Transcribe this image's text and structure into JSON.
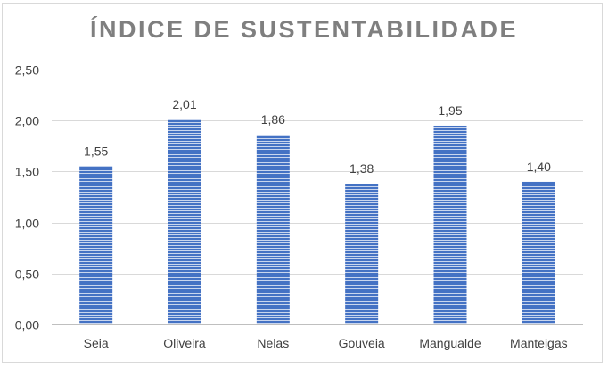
{
  "chart_data": {
    "type": "bar",
    "title": "ÍNDICE DE SUSTENTABILIDADE",
    "categories": [
      "Seia",
      "Oliveira",
      "Nelas",
      "Gouveia",
      "Mangualde",
      "Manteigas"
    ],
    "values": [
      1.55,
      2.01,
      1.86,
      1.38,
      1.95,
      1.4
    ],
    "value_labels": [
      "1,55",
      "2,01",
      "1,86",
      "1,38",
      "1,95",
      "1,40"
    ],
    "y_ticks": [
      "0,00",
      "0,50",
      "1,00",
      "1,50",
      "2,00",
      "2,50"
    ],
    "ylim": [
      0,
      2.5
    ],
    "grid": true,
    "legend": "none",
    "colors": {
      "bar": "#4472c4",
      "bar_stripe": "#c9d6ee",
      "grid": "#d9d9d9",
      "axis": "#bfbfbf",
      "title": "#7f7f7f",
      "text": "#404040"
    }
  }
}
